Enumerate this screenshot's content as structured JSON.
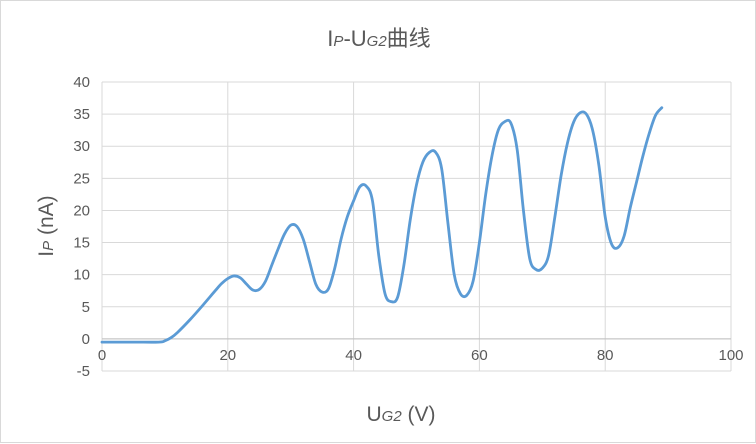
{
  "chart_data": {
    "type": "line",
    "title": {
      "main_prefix": "I",
      "main_prefix_sub": "P",
      "main_mid": "-U",
      "main_mid_sub": "G2",
      "main_suffix": "曲线"
    },
    "xlabel": {
      "main": "U",
      "sub": "G2",
      "unit": " (V)"
    },
    "ylabel": {
      "main": "I",
      "sub": "P",
      "unit": " (nA)"
    },
    "xlim": [
      0,
      100
    ],
    "ylim": [
      -5,
      40
    ],
    "x_ticks": [
      "0",
      "20",
      "40",
      "60",
      "80",
      "100"
    ],
    "y_ticks": [
      "-5",
      "0",
      "5",
      "10",
      "15",
      "20",
      "25",
      "30",
      "35",
      "40"
    ],
    "grid": true,
    "line_color": "#5b9bd5",
    "series": [
      {
        "name": "",
        "x": [
          0,
          5,
          9,
          10,
          11,
          12,
          14,
          16,
          18,
          19,
          20,
          21,
          22,
          23,
          24,
          25,
          26,
          27,
          28,
          29,
          30,
          31,
          32,
          33,
          34,
          35,
          36,
          37,
          38,
          39,
          40,
          41,
          42,
          43,
          44,
          45,
          46,
          47,
          48,
          49,
          50,
          51,
          52,
          53,
          54,
          55,
          56,
          57,
          58,
          59,
          60,
          61,
          62,
          63,
          64,
          65,
          66,
          67,
          68,
          69,
          70,
          71,
          72,
          73,
          74,
          75,
          76,
          77,
          78,
          79,
          80,
          81,
          82,
          83,
          84,
          85,
          86,
          87,
          88,
          89
        ],
        "y": [
          -0.5,
          -0.5,
          -0.5,
          -0.3,
          0.2,
          1.0,
          3.0,
          5.2,
          7.5,
          8.6,
          9.4,
          9.8,
          9.5,
          8.5,
          7.6,
          7.7,
          9.0,
          11.5,
          14.0,
          16.3,
          17.7,
          17.5,
          15.5,
          12.0,
          8.5,
          7.3,
          7.8,
          11.0,
          15.5,
          19.0,
          21.5,
          23.7,
          23.8,
          21.5,
          13.0,
          7.0,
          5.8,
          6.5,
          11.5,
          18.5,
          24.0,
          27.5,
          29.0,
          29.1,
          26.5,
          18.0,
          10.0,
          7.0,
          6.8,
          9.0,
          15.0,
          22.5,
          28.5,
          32.5,
          33.8,
          33.6,
          29.5,
          20.0,
          12.5,
          10.8,
          11.0,
          13.0,
          19.0,
          25.5,
          30.5,
          33.8,
          35.2,
          35.0,
          32.5,
          27.0,
          19.0,
          14.8,
          14.2,
          16.0,
          20.5,
          24.5,
          28.5,
          32.0,
          34.8,
          36.0
        ]
      }
    ]
  }
}
